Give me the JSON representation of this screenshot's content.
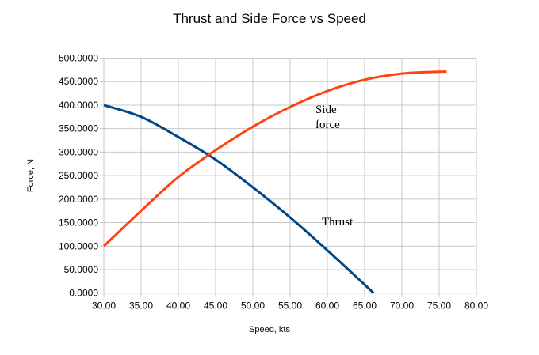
{
  "chart_data": {
    "type": "line",
    "title": "Thrust and Side Force vs Speed",
    "xlabel": "Speed, kts",
    "ylabel": "Force, N",
    "xlim": [
      30,
      80
    ],
    "ylim": [
      0,
      500
    ],
    "grid": true,
    "x_ticks": [
      "30.00",
      "35.00",
      "40.00",
      "45.00",
      "50.00",
      "55.00",
      "60.00",
      "65.00",
      "70.00",
      "75.00",
      "80.00"
    ],
    "y_ticks": [
      "0.0000",
      "50.0000",
      "100.0000",
      "150.0000",
      "200.0000",
      "250.0000",
      "300.0000",
      "350.0000",
      "400.0000",
      "450.0000",
      "500.0000"
    ],
    "series": [
      {
        "name": "Thrust",
        "color": "#004586",
        "x": [
          30,
          35,
          40,
          45,
          50,
          55,
          60,
          65,
          66.2
        ],
        "y": [
          400,
          375,
          332,
          284,
          225,
          161,
          91,
          18,
          0
        ]
      },
      {
        "name": "Side force",
        "color": "#ff420e",
        "x": [
          30,
          35,
          40,
          45,
          50,
          55,
          60,
          65,
          70,
          75,
          76
        ],
        "y": [
          100,
          175,
          247,
          304,
          354,
          396,
          430,
          454,
          467,
          471,
          471
        ]
      }
    ],
    "annotations": [
      {
        "text": "Side",
        "series": "Side force"
      },
      {
        "text": "force",
        "series": "Side force"
      },
      {
        "text": "Thrust",
        "series": "Thrust"
      }
    ]
  }
}
